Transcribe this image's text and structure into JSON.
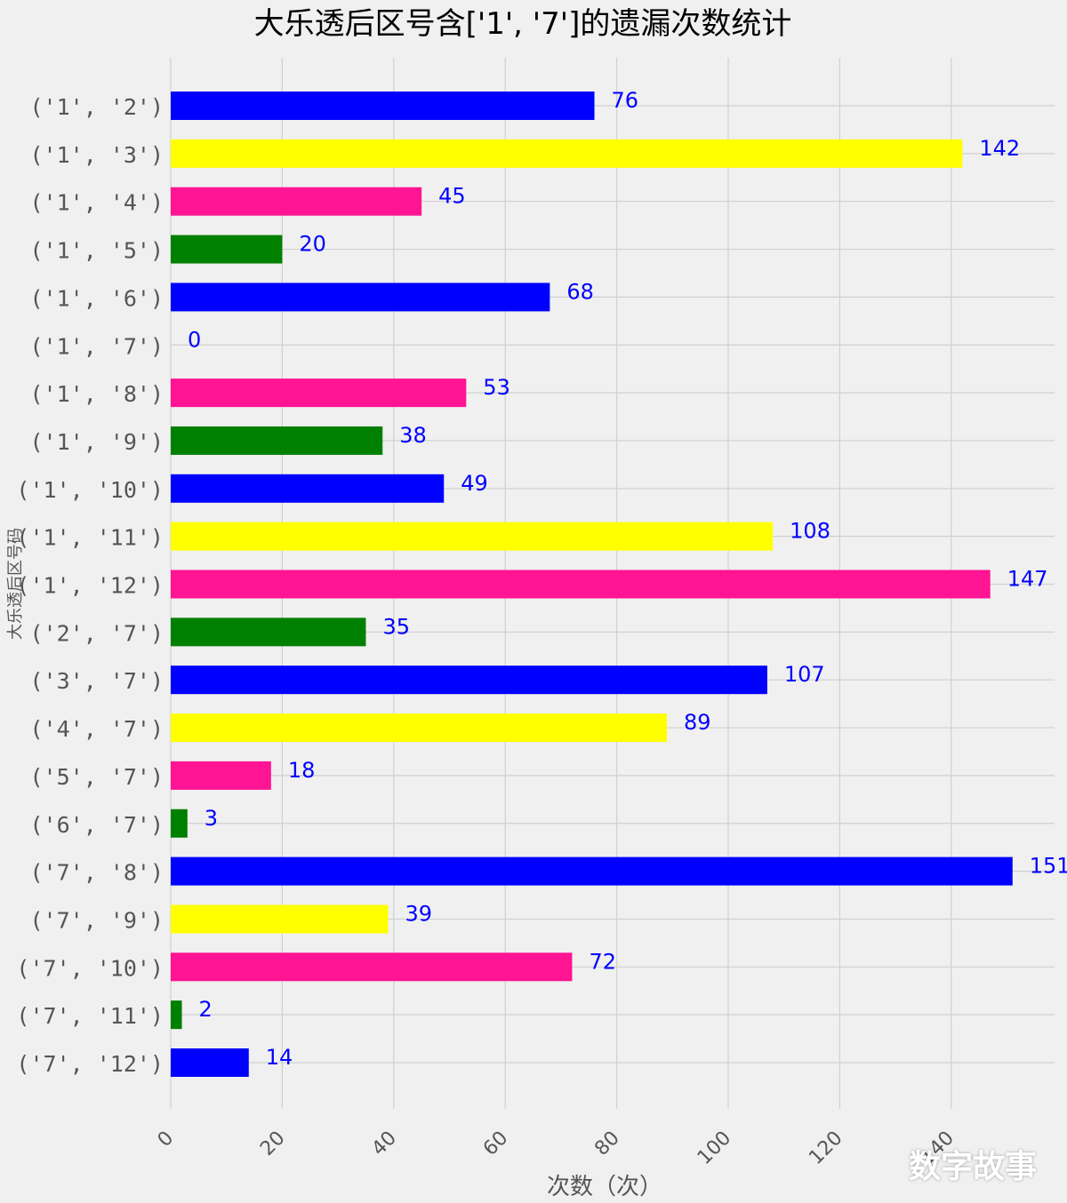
{
  "chart_data": {
    "type": "bar",
    "orientation": "horizontal",
    "title": "大乐透后区号含['1', '7']的遗漏次数统计",
    "xlabel": "次数（次）",
    "ylabel": "大乐透后区号码",
    "categories": [
      "('1', '2')",
      "('1', '3')",
      "('1', '4')",
      "('1', '5')",
      "('1', '6')",
      "('1', '7')",
      "('1', '8')",
      "('1', '9')",
      "('1', '10')",
      "('1', '11')",
      "('1', '12')",
      "('2', '7')",
      "('3', '7')",
      "('4', '7')",
      "('5', '7')",
      "('6', '7')",
      "('7', '8')",
      "('7', '9')",
      "('7', '10')",
      "('7', '11')",
      "('7', '12')"
    ],
    "values": [
      76,
      142,
      45,
      20,
      68,
      0,
      53,
      38,
      49,
      108,
      147,
      35,
      107,
      89,
      18,
      3,
      151,
      39,
      72,
      2,
      14
    ],
    "value_labels": [
      "76",
      "142",
      "45",
      "20",
      "68",
      "0",
      "53",
      "38",
      "49",
      "108",
      "147",
      "35",
      "107",
      "89",
      "18",
      "3",
      "151",
      "39",
      "72",
      "2",
      "14"
    ],
    "bar_colors": [
      "#0000ff",
      "#ffff00",
      "#ff1493",
      "#008000",
      "#0000ff",
      "#ffff00",
      "#ff1493",
      "#008000",
      "#0000ff",
      "#ffff00",
      "#ff1493",
      "#008000",
      "#0000ff",
      "#ffff00",
      "#ff1493",
      "#008000",
      "#0000ff",
      "#ffff00",
      "#ff1493",
      "#008000",
      "#0000ff"
    ],
    "xticks": [
      "0",
      "20",
      "40",
      "60",
      "80",
      "100",
      "120",
      "140"
    ],
    "xlim": [
      0,
      158
    ],
    "grid": true,
    "label_color": "#0000ff"
  },
  "watermark": "数字故事"
}
